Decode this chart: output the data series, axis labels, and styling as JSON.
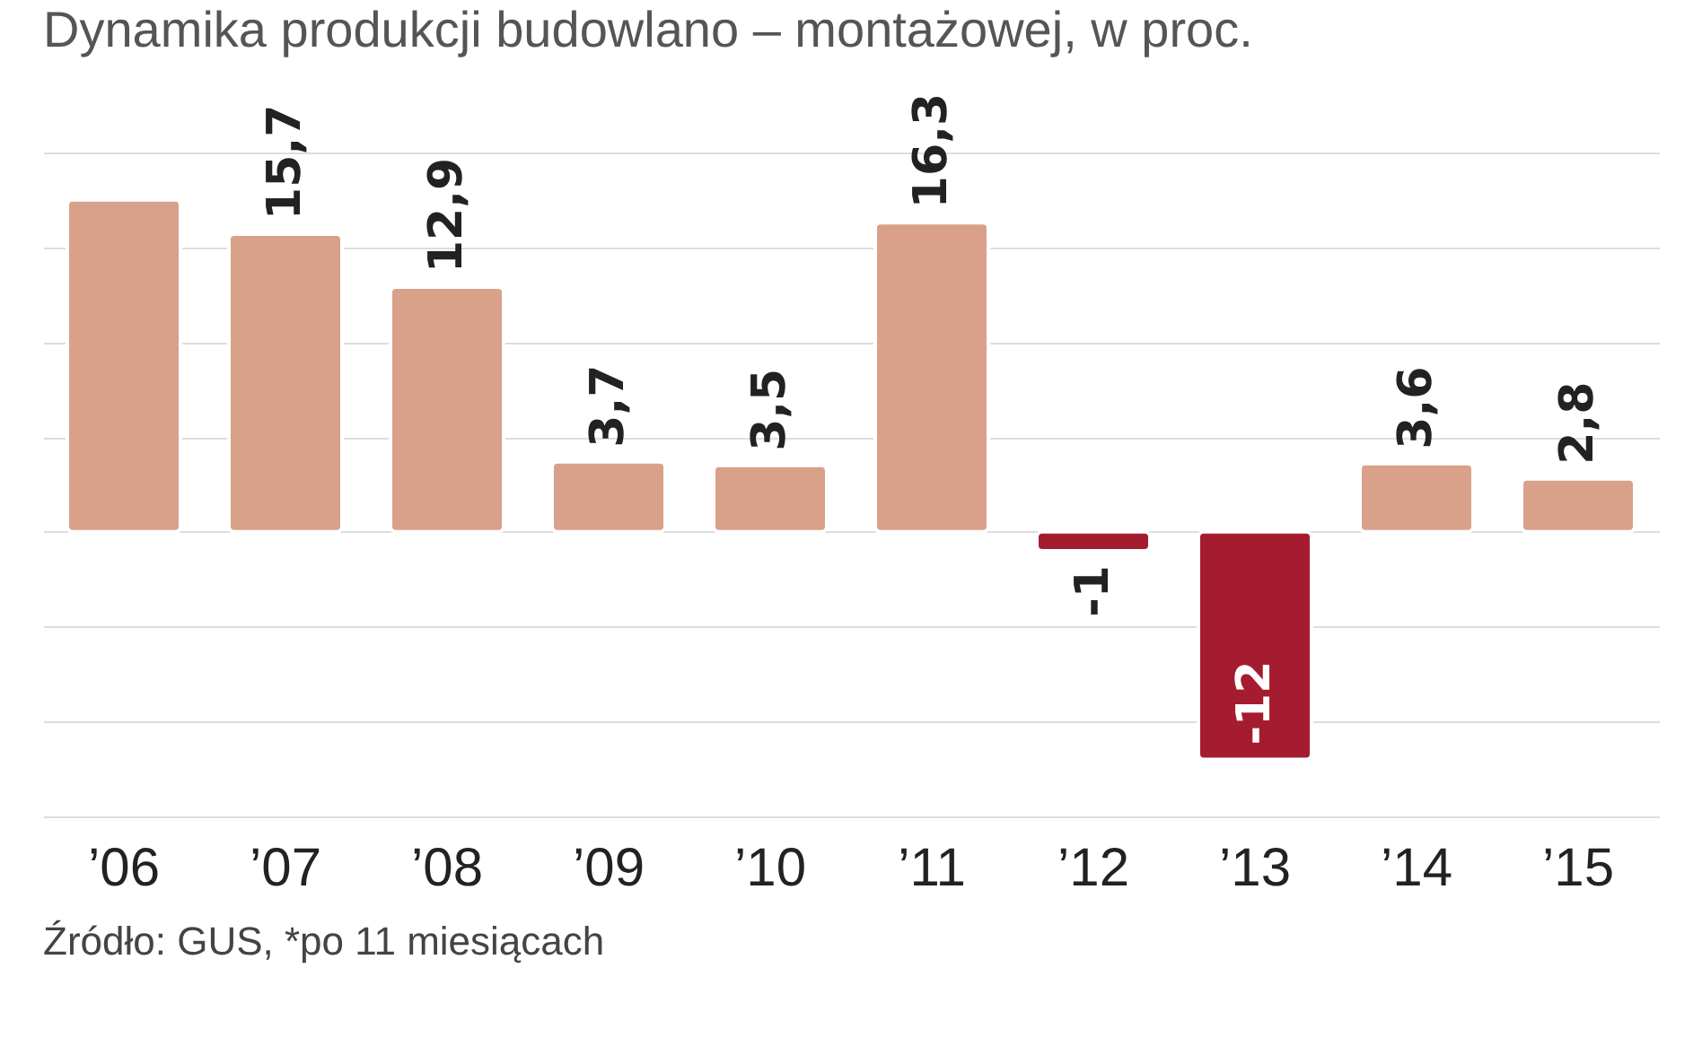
{
  "chart_data": {
    "type": "bar",
    "title": "Dynamika produkcji budowlano – montażowej, w proc.",
    "categories": [
      "’06",
      "’07",
      "’08",
      "’09",
      "’10",
      "’11",
      "’12",
      "’13",
      "’14",
      "’15"
    ],
    "values": [
      17.5,
      15.7,
      12.9,
      3.7,
      3.5,
      16.3,
      -1,
      -12,
      3.6,
      2.8
    ],
    "colors": [
      "#d9a08a",
      "#d9a08a",
      "#d9a08a",
      "#d9a08a",
      "#d9a08a",
      "#d9a08a",
      "#a51c30",
      "#a51c30",
      "#d9a08a",
      "#d9a08a"
    ],
    "value_labels": [
      null,
      "15,7",
      "12,9",
      "3,7",
      "3,5",
      "16,3",
      "-1",
      "-12",
      "3,6",
      "2,8"
    ],
    "ylim": [
      -15,
      20
    ],
    "yticks": [
      -15,
      -10,
      -5,
      0,
      5,
      10,
      15,
      20
    ],
    "grid": "y",
    "tick_labels": "x",
    "annotations": [
      "Źródło: GUS, *po 11 miesiącach"
    ]
  }
}
